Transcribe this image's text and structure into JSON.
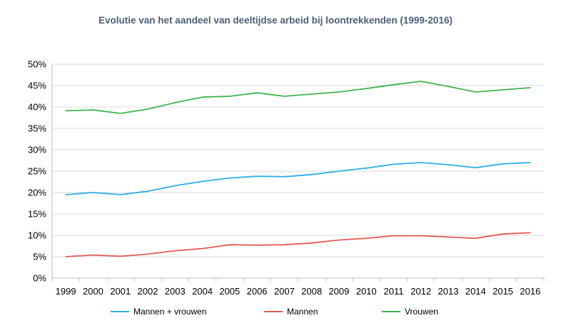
{
  "chart_data": {
    "type": "line",
    "title": "Evolutie van het aandeel van deeltijdse arbeid bij loontrekkenden (1999-2016)",
    "xlabel": "",
    "ylabel": "",
    "x": [
      "1999",
      "2000",
      "2001",
      "2002",
      "2003",
      "2004",
      "2005",
      "2006",
      "2007",
      "2008",
      "2009",
      "2010",
      "2011",
      "2012",
      "2013",
      "2014",
      "2015",
      "2016"
    ],
    "ylim": [
      0,
      50
    ],
    "yticks": [
      "0%",
      "5%",
      "10%",
      "15%",
      "20%",
      "25%",
      "30%",
      "35%",
      "40%",
      "45%",
      "50%"
    ],
    "grid": true,
    "legend_position": "bottom",
    "series": [
      {
        "name": "Mannen + vrouwen",
        "color": "#2eaee3",
        "values": [
          19.5,
          20.0,
          19.5,
          20.3,
          21.6,
          22.6,
          23.4,
          23.8,
          23.7,
          24.2,
          25.0,
          25.7,
          26.6,
          27.0,
          26.5,
          25.8,
          26.7,
          27.0
        ]
      },
      {
        "name": "Mannen",
        "color": "#e25b55",
        "values": [
          5.0,
          5.4,
          5.1,
          5.6,
          6.4,
          6.9,
          7.8,
          7.7,
          7.8,
          8.2,
          8.9,
          9.3,
          9.9,
          9.9,
          9.6,
          9.3,
          10.3,
          10.6
        ]
      },
      {
        "name": "Vrouwen",
        "color": "#3fb54f",
        "values": [
          39.1,
          39.3,
          38.5,
          39.5,
          41.0,
          42.3,
          42.5,
          43.3,
          42.5,
          43.0,
          43.5,
          44.3,
          45.2,
          46.0,
          44.8,
          43.5,
          44.0,
          44.5
        ]
      }
    ]
  }
}
